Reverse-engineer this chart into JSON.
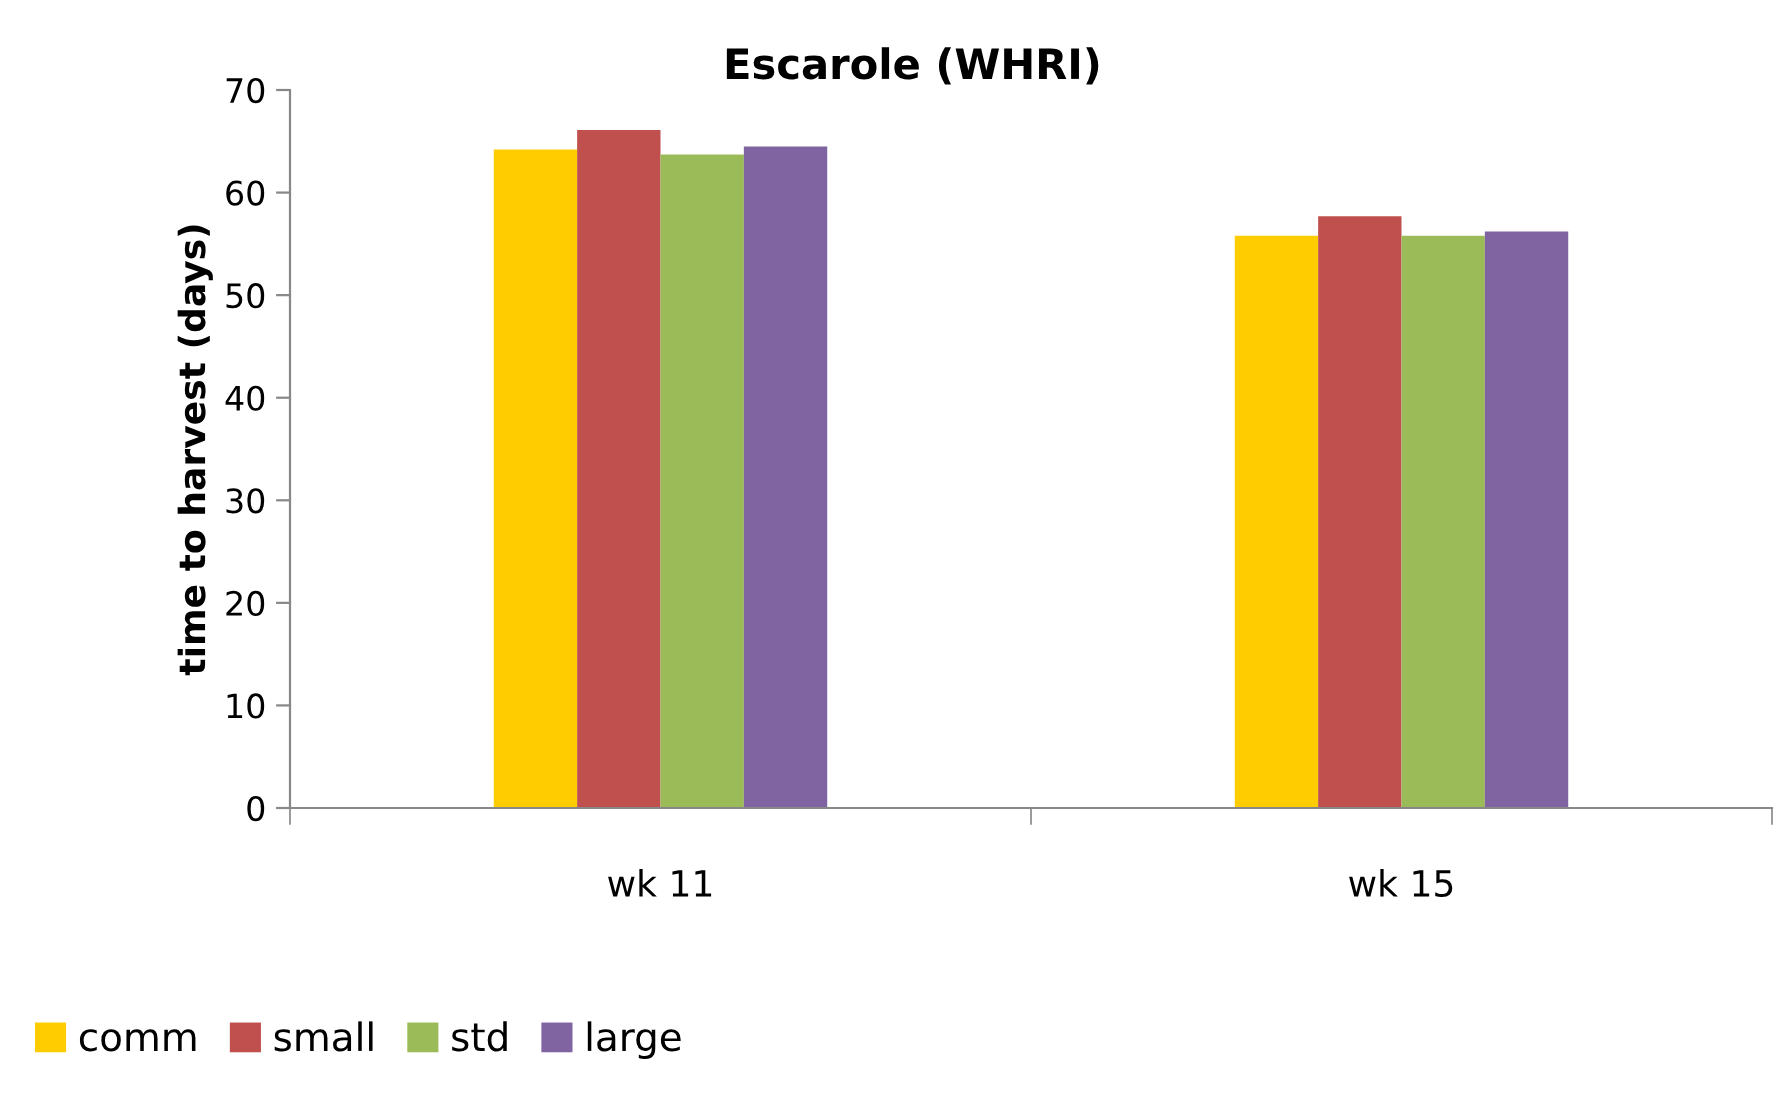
{
  "chart_data": {
    "type": "bar",
    "title": "Escarole (WHRI)",
    "ylabel": "time to harvest (days)",
    "categories": [
      "wk 11",
      "wk 15"
    ],
    "series": [
      {
        "name": "comm",
        "color": "#ffcc00",
        "values": [
          64.2,
          55.8
        ]
      },
      {
        "name": "small",
        "color": "#c0504d",
        "values": [
          66.1,
          57.7
        ]
      },
      {
        "name": "std",
        "color": "#9bbb59",
        "values": [
          63.7,
          55.8
        ]
      },
      {
        "name": "large",
        "color": "#8064a2",
        "values": [
          64.5,
          56.2
        ]
      }
    ],
    "ylim": [
      0,
      70
    ],
    "yticks": [
      0,
      10,
      20,
      30,
      40,
      50,
      60,
      70
    ],
    "grid": false,
    "legend": "bottom left"
  }
}
